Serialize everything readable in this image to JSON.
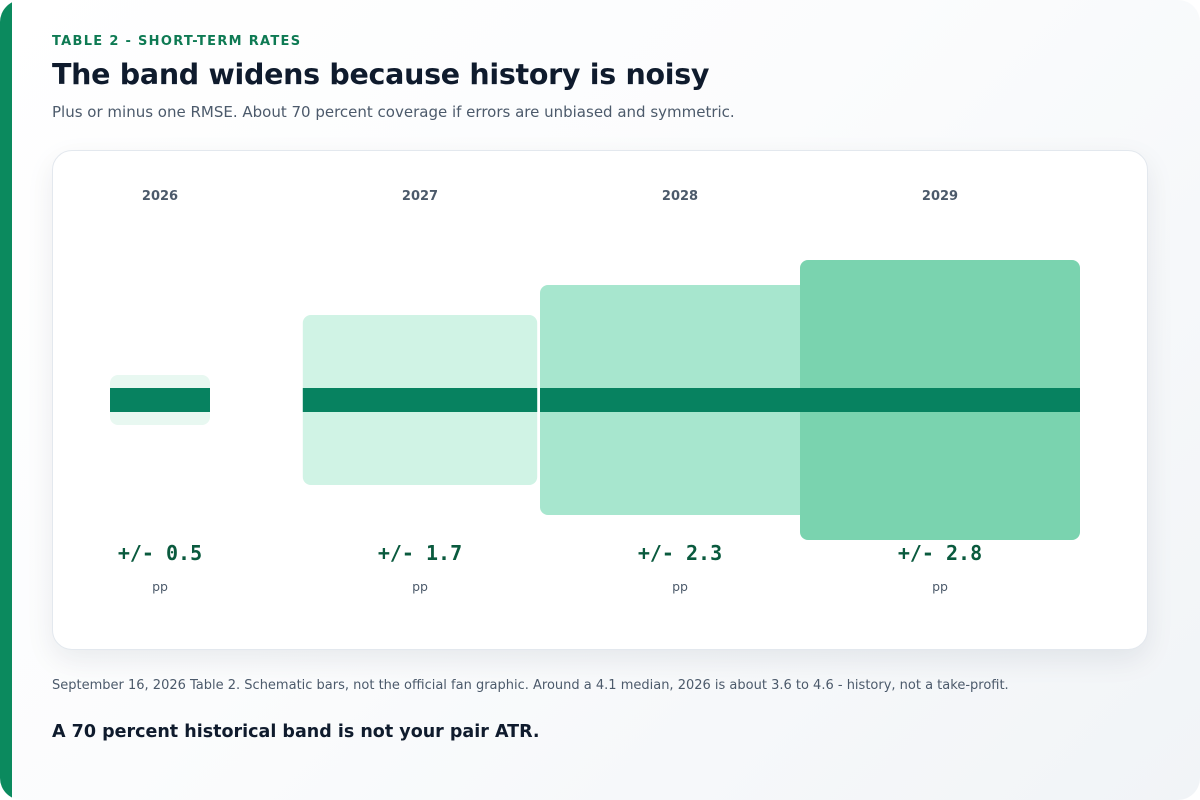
{
  "header": {
    "eyebrow": "TABLE 2 - SHORT-TERM RATES",
    "title": "The band widens because history is noisy",
    "subtitle": "Plus or minus one RMSE. About 70 percent coverage if errors are unbiased and symmetric."
  },
  "chart_data": {
    "type": "bar",
    "categories": [
      "2026",
      "2027",
      "2028",
      "2029"
    ],
    "values": [
      0.5,
      1.7,
      2.3,
      2.8
    ],
    "value_labels": [
      "+/- 0.5",
      "+/- 1.7",
      "+/- 2.3",
      "+/- 2.8"
    ],
    "unit": "pp",
    "colors": {
      "bands": [
        "#e8f8f1",
        "#d0f3e5",
        "#a7e6ce",
        "#7ad3af"
      ],
      "median_line": "#078260"
    }
  },
  "footer": {
    "footnote": "September 16, 2026 Table 2. Schematic bars, not the official fan graphic. Around a 4.1 median, 2026 is about 3.6 to 4.6 - history, not a take-profit.",
    "takeaway": "A 70 percent historical band is not your pair ATR."
  },
  "colors": {
    "accent": "#0b8a5e",
    "eyebrow": "#0e7a53",
    "title": "#0f1b2d",
    "muted": "#4c5a6b"
  }
}
